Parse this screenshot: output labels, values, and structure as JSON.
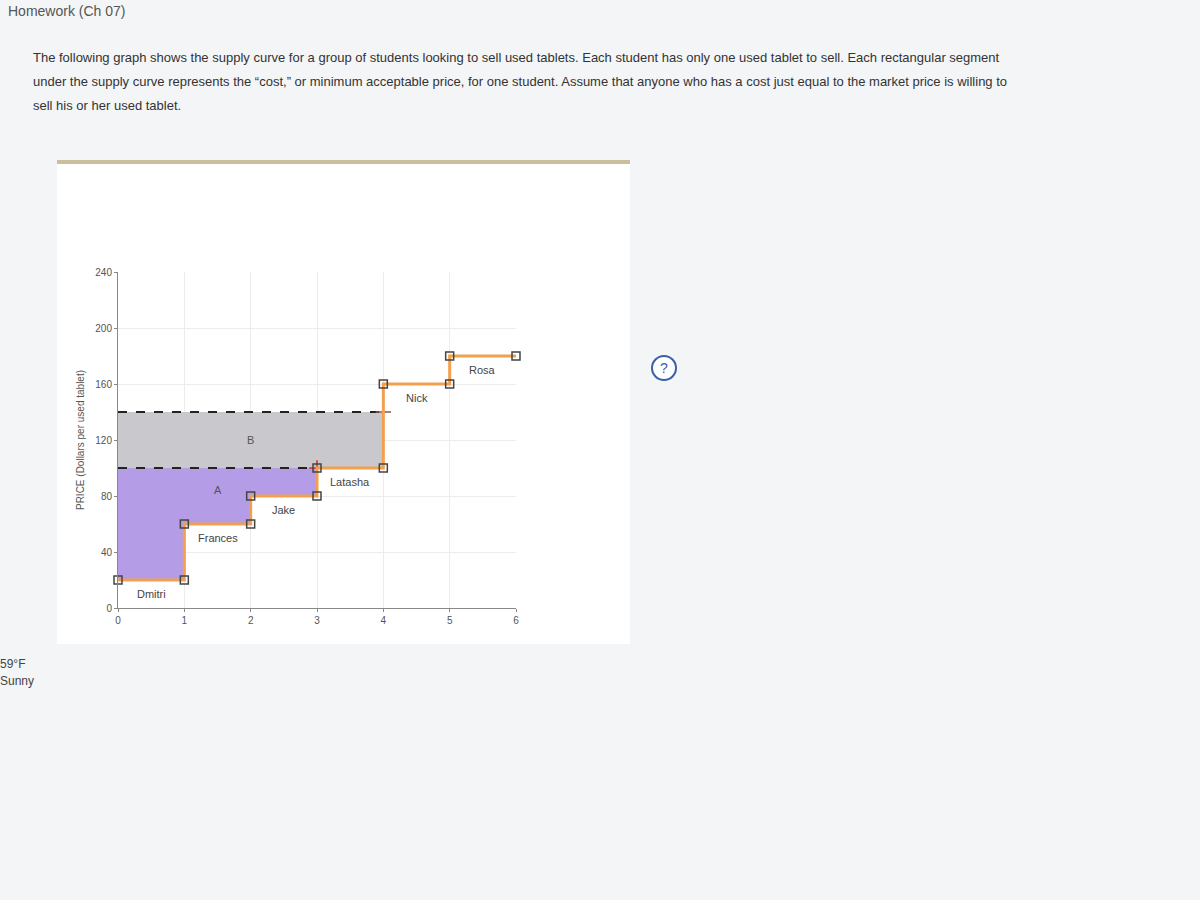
{
  "page": {
    "header": "Homework (Ch 07)",
    "paragraph": "The following graph shows the supply curve for a group of students looking to sell used tablets. Each student has only one used tablet to sell. Each rectangular segment under the supply curve represents the “cost,” or minimum acceptable price, for one student. Assume that anyone who has a cost just equal to the market price is willing to sell his or her used tablet.",
    "help": "?",
    "weather": [
      "59°F",
      "Sunny"
    ]
  },
  "chart_data": {
    "type": "step",
    "y_label": "PRICE (Dollars per used tablet)",
    "categories": [
      "Dmitri",
      "Frances",
      "Jake",
      "Latasha",
      "Nick",
      "Rosa"
    ],
    "x": [
      0,
      1,
      2,
      3,
      4,
      5
    ],
    "units_each": 1,
    "values": [
      20,
      60,
      80,
      100,
      160,
      180
    ],
    "color": "#f2a04e",
    "marker": "square",
    "line_style": "solid",
    "xlim": [
      0,
      6
    ],
    "xticks": [
      0,
      1,
      2,
      3,
      4,
      5,
      6
    ],
    "ylim": [
      0,
      240
    ],
    "yticks": [
      0,
      40,
      80,
      120,
      160,
      200,
      240
    ],
    "grid": true,
    "price_lines": [
      {
        "value": 100,
        "quantity": 3
      },
      {
        "value": 140,
        "quantity": 4
      }
    ],
    "regions": [
      {
        "label": "A",
        "color": "#b59ce6",
        "from": 0,
        "to": 3,
        "upper": 100
      },
      {
        "label": "B",
        "color": "#c9c9cd",
        "from": 0,
        "to": 4,
        "lower": 100,
        "upper": 140
      }
    ]
  }
}
